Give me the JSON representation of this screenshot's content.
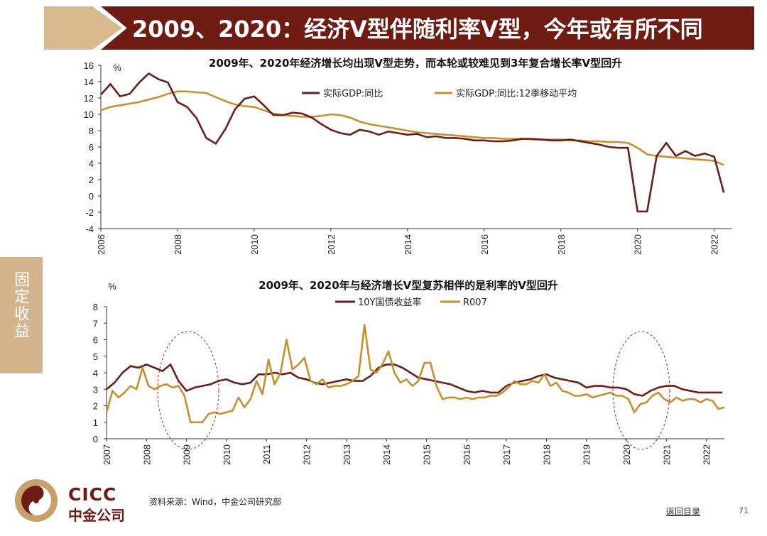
{
  "header": {
    "title": "2009、2020：经济V型伴随利率V型，今年或有所不同"
  },
  "side_tab": {
    "label": "固定收益"
  },
  "colors": {
    "brand": "#6e1b13",
    "tan": "#d3b48d",
    "gdp": "#6b1d17",
    "ma": "#c6902e",
    "bond": "#6b1d17",
    "r007": "#c6902e",
    "highlight": "#c0141a"
  },
  "footer": {
    "logo_en": "CICC",
    "logo_cn": "中金公司",
    "source": "资料来源：Wind，中金公司研究部",
    "back_link": "返回目录",
    "page_number": "71"
  },
  "chart_data": [
    {
      "type": "line",
      "title": "2009年、2020年经济增长均出现V型走势，而本轮或较难见到3年复合增长率V型回升",
      "ylabel": "%",
      "ylim": [
        -4,
        16
      ],
      "yticks": [
        "16",
        "14",
        "12",
        "10",
        "8",
        "6",
        "4",
        "2",
        "0",
        "-2",
        "-4"
      ],
      "xticks": [
        "2006",
        "2008",
        "2010",
        "2012",
        "2014",
        "2016",
        "2018",
        "2020",
        "2022"
      ],
      "legend_position": "top-center",
      "series": [
        {
          "name": "实际GDP:同比",
          "color": "#6b1d17",
          "x": [
            2006.0,
            2006.25,
            2006.5,
            2006.75,
            2007.0,
            2007.25,
            2007.5,
            2007.75,
            2008.0,
            2008.25,
            2008.5,
            2008.75,
            2009.0,
            2009.25,
            2009.5,
            2009.75,
            2010.0,
            2010.25,
            2010.5,
            2010.75,
            2011.0,
            2011.25,
            2011.5,
            2011.75,
            2012.0,
            2012.25,
            2012.5,
            2012.75,
            2013.0,
            2013.25,
            2013.5,
            2013.75,
            2014.0,
            2014.25,
            2014.5,
            2014.75,
            2015.0,
            2015.25,
            2015.5,
            2015.75,
            2016.0,
            2016.25,
            2016.5,
            2016.75,
            2017.0,
            2017.25,
            2017.5,
            2017.75,
            2018.0,
            2018.25,
            2018.5,
            2018.75,
            2019.0,
            2019.25,
            2019.5,
            2019.75,
            2020.0,
            2020.25,
            2020.5,
            2020.75,
            2021.0,
            2021.25,
            2021.5,
            2021.75,
            2022.0,
            2022.25
          ],
          "y": [
            12.4,
            13.7,
            12.2,
            12.5,
            13.9,
            15.0,
            14.3,
            13.9,
            11.5,
            10.9,
            9.5,
            7.1,
            6.4,
            8.2,
            10.6,
            11.9,
            12.2,
            11.1,
            9.9,
            9.9,
            10.2,
            10.1,
            9.6,
            8.8,
            8.1,
            7.7,
            7.5,
            8.1,
            7.9,
            7.5,
            7.9,
            7.7,
            7.5,
            7.6,
            7.2,
            7.3,
            7.1,
            7.1,
            7.0,
            6.8,
            6.8,
            6.7,
            6.7,
            6.8,
            7.0,
            7.0,
            6.9,
            6.8,
            6.8,
            6.9,
            6.7,
            6.5,
            6.3,
            6.0,
            5.9,
            5.9,
            -1.9,
            -1.9,
            4.9,
            6.5,
            4.9,
            5.5,
            4.9,
            5.2,
            4.8,
            0.4
          ]
        },
        {
          "name": "实际GDP:同比:12季移动平均",
          "color": "#c6902e",
          "x": [
            2006.0,
            2006.25,
            2006.5,
            2006.75,
            2007.0,
            2007.25,
            2007.5,
            2007.75,
            2008.0,
            2008.25,
            2008.5,
            2008.75,
            2009.0,
            2009.25,
            2009.5,
            2009.75,
            2010.0,
            2010.25,
            2010.5,
            2010.75,
            2011.0,
            2011.25,
            2011.5,
            2011.75,
            2012.0,
            2012.25,
            2012.5,
            2012.75,
            2013.0,
            2013.25,
            2013.5,
            2013.75,
            2014.0,
            2014.25,
            2014.5,
            2014.75,
            2015.0,
            2015.25,
            2015.5,
            2015.75,
            2016.0,
            2016.25,
            2016.5,
            2016.75,
            2017.0,
            2017.25,
            2017.5,
            2017.75,
            2018.0,
            2018.25,
            2018.5,
            2018.75,
            2019.0,
            2019.25,
            2019.5,
            2019.75,
            2020.0,
            2020.25,
            2020.5,
            2020.75,
            2021.0,
            2021.25,
            2021.5,
            2021.75,
            2022.0,
            2022.25
          ],
          "y": [
            10.5,
            10.9,
            11.1,
            11.3,
            11.5,
            11.8,
            12.1,
            12.5,
            12.8,
            12.8,
            12.7,
            12.6,
            12.1,
            11.6,
            11.2,
            11.0,
            10.9,
            10.5,
            10.1,
            9.9,
            9.8,
            9.7,
            9.7,
            9.8,
            10.0,
            9.9,
            9.6,
            9.1,
            8.8,
            8.6,
            8.4,
            8.2,
            8.0,
            7.8,
            7.7,
            7.6,
            7.5,
            7.4,
            7.3,
            7.2,
            7.1,
            7.1,
            7.0,
            7.0,
            7.0,
            6.9,
            6.9,
            6.9,
            6.9,
            6.8,
            6.8,
            6.7,
            6.7,
            6.6,
            6.6,
            6.5,
            5.9,
            5.1,
            4.9,
            4.8,
            4.7,
            4.6,
            4.5,
            4.4,
            4.3,
            3.8
          ]
        }
      ]
    },
    {
      "type": "line",
      "title": "2009年、2020年与经济增长V型复苏相伴的是利率的V型回升",
      "ylabel": "%",
      "ylim": [
        0,
        8
      ],
      "yticks": [
        "8",
        "7",
        "6",
        "5",
        "4",
        "3",
        "2",
        "1",
        "0"
      ],
      "xticks": [
        "2007",
        "2008",
        "2009",
        "2010",
        "2011",
        "2012",
        "2013",
        "2014",
        "2015",
        "2016",
        "2017",
        "2018",
        "2019",
        "2020",
        "2021",
        "2022"
      ],
      "legend_position": "top-center",
      "annotations": [
        "red-dashed-ellipse-2009",
        "red-dashed-ellipse-2020"
      ],
      "series": [
        {
          "name": "10Y国债收益率",
          "color": "#6b1d17",
          "x": [
            2007.0,
            2007.2,
            2007.4,
            2007.6,
            2007.8,
            2008.0,
            2008.2,
            2008.4,
            2008.6,
            2008.8,
            2009.0,
            2009.2,
            2009.4,
            2009.6,
            2009.8,
            2010.0,
            2010.2,
            2010.4,
            2010.6,
            2010.8,
            2011.0,
            2011.2,
            2011.4,
            2011.6,
            2011.8,
            2012.0,
            2012.2,
            2012.4,
            2012.6,
            2012.8,
            2013.0,
            2013.2,
            2013.4,
            2013.6,
            2013.8,
            2014.0,
            2014.2,
            2014.4,
            2014.6,
            2014.8,
            2015.0,
            2015.2,
            2015.4,
            2015.6,
            2015.8,
            2016.0,
            2016.2,
            2016.4,
            2016.6,
            2016.8,
            2017.0,
            2017.2,
            2017.4,
            2017.6,
            2017.8,
            2018.0,
            2018.2,
            2018.4,
            2018.6,
            2018.8,
            2019.0,
            2019.2,
            2019.4,
            2019.6,
            2019.8,
            2020.0,
            2020.2,
            2020.4,
            2020.6,
            2020.8,
            2021.0,
            2021.2,
            2021.4,
            2021.6,
            2021.8,
            2022.0,
            2022.2,
            2022.4
          ],
          "y": [
            3.0,
            3.4,
            4.0,
            4.4,
            4.3,
            4.5,
            4.3,
            4.1,
            4.5,
            3.5,
            2.9,
            3.1,
            3.2,
            3.3,
            3.5,
            3.6,
            3.4,
            3.3,
            3.4,
            3.9,
            3.9,
            4.0,
            3.9,
            4.0,
            3.7,
            3.6,
            3.4,
            3.3,
            3.4,
            3.5,
            3.6,
            3.5,
            3.5,
            3.8,
            4.3,
            4.5,
            4.5,
            4.3,
            4.0,
            3.7,
            3.6,
            3.5,
            3.4,
            3.3,
            3.1,
            2.9,
            2.8,
            2.9,
            2.8,
            2.8,
            3.2,
            3.4,
            3.5,
            3.6,
            3.8,
            3.9,
            3.7,
            3.6,
            3.5,
            3.4,
            3.1,
            3.2,
            3.2,
            3.1,
            3.1,
            3.0,
            2.7,
            2.6,
            2.9,
            3.1,
            3.2,
            3.2,
            3.0,
            2.9,
            2.8,
            2.8,
            2.8,
            2.8
          ]
        },
        {
          "name": "R007",
          "color": "#c6902e",
          "x": [
            2007.0,
            2007.15,
            2007.3,
            2007.45,
            2007.6,
            2007.75,
            2007.9,
            2008.05,
            2008.2,
            2008.35,
            2008.5,
            2008.65,
            2008.8,
            2008.95,
            2009.1,
            2009.25,
            2009.4,
            2009.55,
            2009.7,
            2009.85,
            2010.0,
            2010.15,
            2010.3,
            2010.45,
            2010.6,
            2010.75,
            2010.9,
            2011.05,
            2011.2,
            2011.35,
            2011.5,
            2011.65,
            2011.8,
            2011.95,
            2012.1,
            2012.25,
            2012.4,
            2012.55,
            2012.7,
            2012.85,
            2013.0,
            2013.15,
            2013.3,
            2013.45,
            2013.6,
            2013.75,
            2013.9,
            2014.05,
            2014.2,
            2014.35,
            2014.5,
            2014.65,
            2014.8,
            2014.95,
            2015.1,
            2015.25,
            2015.4,
            2015.55,
            2015.7,
            2015.85,
            2016.0,
            2016.15,
            2016.3,
            2016.45,
            2016.6,
            2016.75,
            2016.9,
            2017.05,
            2017.2,
            2017.35,
            2017.5,
            2017.65,
            2017.8,
            2017.95,
            2018.1,
            2018.25,
            2018.4,
            2018.55,
            2018.7,
            2018.85,
            2019.0,
            2019.15,
            2019.3,
            2019.45,
            2019.6,
            2019.75,
            2019.9,
            2020.05,
            2020.2,
            2020.35,
            2020.5,
            2020.65,
            2020.8,
            2020.95,
            2021.1,
            2021.25,
            2021.4,
            2021.55,
            2021.7,
            2021.85,
            2022.0,
            2022.15,
            2022.3,
            2022.45
          ],
          "y": [
            1.6,
            2.9,
            2.5,
            2.8,
            3.2,
            3.0,
            4.3,
            3.2,
            3.0,
            3.2,
            3.3,
            3.1,
            3.2,
            2.6,
            1.0,
            1.0,
            1.0,
            1.5,
            1.6,
            1.5,
            1.6,
            1.7,
            2.5,
            1.9,
            2.4,
            3.5,
            2.7,
            4.8,
            3.3,
            4.0,
            6.0,
            4.2,
            4.5,
            4.9,
            3.5,
            3.3,
            3.6,
            3.1,
            3.2,
            3.2,
            3.3,
            3.5,
            3.8,
            6.9,
            4.2,
            4.0,
            4.5,
            5.3,
            4.0,
            3.4,
            3.6,
            3.2,
            3.5,
            4.6,
            4.6,
            3.2,
            2.4,
            2.5,
            2.5,
            2.4,
            2.5,
            2.4,
            2.5,
            2.5,
            2.6,
            2.6,
            2.8,
            3.1,
            3.5,
            3.3,
            3.3,
            3.5,
            3.4,
            3.9,
            3.2,
            3.4,
            2.9,
            2.8,
            2.6,
            2.6,
            2.7,
            2.5,
            2.6,
            2.7,
            2.8,
            2.6,
            2.6,
            2.4,
            1.6,
            2.1,
            2.2,
            2.6,
            2.8,
            2.4,
            2.2,
            2.5,
            2.3,
            2.4,
            2.4,
            2.2,
            2.4,
            2.3,
            1.8,
            1.9
          ]
        }
      ]
    }
  ]
}
